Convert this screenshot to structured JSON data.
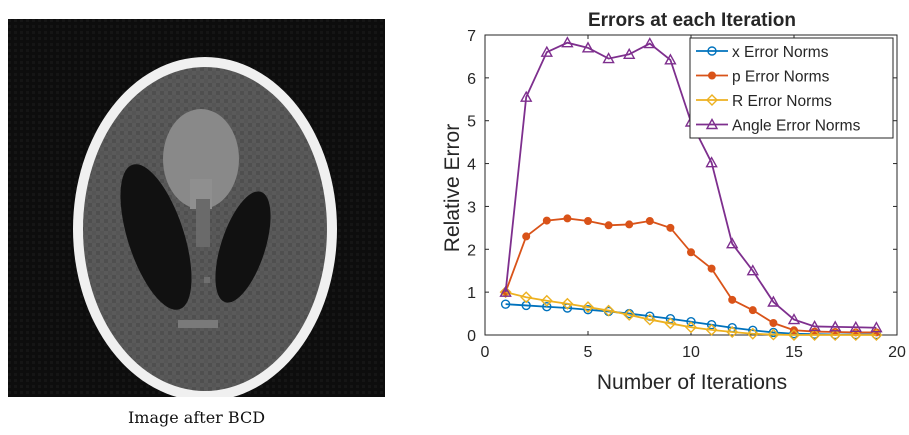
{
  "image_panel": {
    "caption": "Image after BCD"
  },
  "chart_data": {
    "type": "line",
    "title": "Errors at each Iteration",
    "xlabel": "Number of Iterations",
    "ylabel": "Relative Error",
    "xlim": [
      0,
      20
    ],
    "ylim": [
      0,
      7
    ],
    "xticks": [
      0,
      5,
      10,
      15,
      20
    ],
    "yticks": [
      0,
      1,
      2,
      3,
      4,
      5,
      6,
      7
    ],
    "grid": false,
    "legend_position": "top-right",
    "series": [
      {
        "name": "x Error Norms",
        "color": "#0072BD",
        "marker": "circle",
        "x": [
          1,
          2,
          3,
          4,
          5,
          6,
          7,
          8,
          9,
          10,
          11,
          12,
          13,
          14,
          15,
          16,
          17,
          18,
          19
        ],
        "values": [
          0.72,
          0.69,
          0.66,
          0.63,
          0.59,
          0.55,
          0.5,
          0.44,
          0.38,
          0.31,
          0.24,
          0.17,
          0.11,
          0.06,
          0.03,
          0.02,
          0.01,
          0.01,
          0.01
        ]
      },
      {
        "name": "p Error Norms",
        "color": "#D95319",
        "marker": "dot",
        "x": [
          1,
          2,
          3,
          4,
          5,
          6,
          7,
          8,
          9,
          10,
          11,
          12,
          13,
          14,
          15,
          16,
          17,
          18,
          19
        ],
        "values": [
          1.0,
          2.3,
          2.67,
          2.72,
          2.66,
          2.56,
          2.58,
          2.66,
          2.5,
          1.93,
          1.55,
          0.82,
          0.58,
          0.28,
          0.11,
          0.08,
          0.07,
          0.06,
          0.06
        ]
      },
      {
        "name": "R Error Norms",
        "color": "#EDB120",
        "marker": "diamond",
        "x": [
          1,
          2,
          3,
          4,
          5,
          6,
          7,
          8,
          9,
          10,
          11,
          12,
          13,
          14,
          15,
          16,
          17,
          18,
          19
        ],
        "values": [
          1.0,
          0.88,
          0.8,
          0.73,
          0.65,
          0.57,
          0.47,
          0.36,
          0.27,
          0.18,
          0.12,
          0.07,
          0.03,
          0.01,
          0.0,
          0.0,
          0.0,
          0.0,
          0.0
        ]
      },
      {
        "name": "Angle Error Norms",
        "color": "#7E2F8E",
        "marker": "triangle",
        "x": [
          1,
          2,
          3,
          4,
          5,
          6,
          7,
          8,
          9,
          10,
          11,
          12,
          13,
          14,
          15,
          16,
          17,
          18,
          19
        ],
        "values": [
          1.0,
          5.55,
          6.6,
          6.82,
          6.7,
          6.45,
          6.55,
          6.8,
          6.42,
          4.97,
          4.02,
          2.13,
          1.5,
          0.77,
          0.36,
          0.2,
          0.19,
          0.18,
          0.17
        ]
      }
    ]
  },
  "colors": {
    "image_background": "#0b0b0b",
    "skull_rim": "#f2f2f2",
    "brain_tissue": "#535353",
    "dark_ellipses": "#111111",
    "bright_region": "#8a8a8a"
  }
}
